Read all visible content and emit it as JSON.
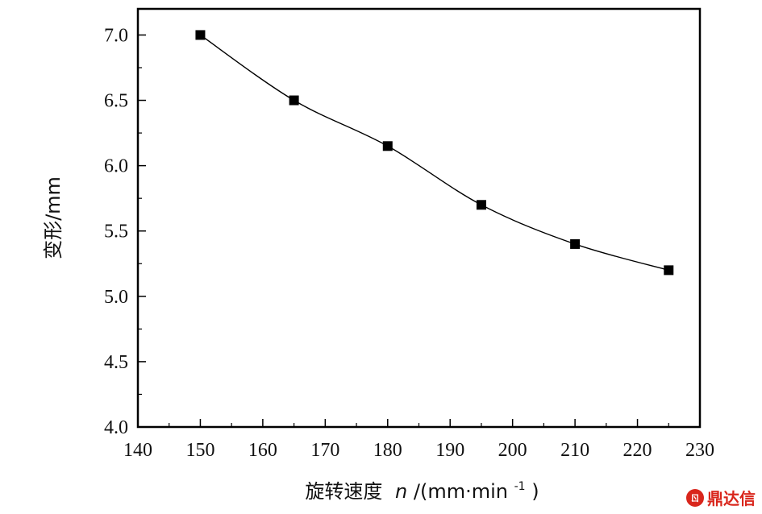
{
  "chart_data": {
    "type": "line",
    "xlabel_main": "旋转速度",
    "xlabel_var": "n",
    "xlabel_unit": "/(mm·min",
    "xlabel_sup": "-1",
    "xlabel_close": ")",
    "ylabel": "变形/mm",
    "xlim": [
      140,
      230
    ],
    "ylim": [
      4.0,
      7.2
    ],
    "x_ticks": [
      "140",
      "150",
      "160",
      "170",
      "180",
      "190",
      "200",
      "210",
      "220",
      "230"
    ],
    "y_ticks": [
      "4.0",
      "4.5",
      "5.0",
      "5.5",
      "6.0",
      "6.5",
      "7.0"
    ],
    "series": [
      {
        "x": [
          150,
          165,
          180,
          195,
          210,
          225
        ],
        "values": [
          7.0,
          6.5,
          6.15,
          5.7,
          5.4,
          5.2
        ],
        "marker": "square",
        "color": "#000000"
      }
    ],
    "grid": false,
    "legend": "none"
  },
  "watermark": {
    "logo": "ㄖ",
    "text": "鼎达信"
  }
}
